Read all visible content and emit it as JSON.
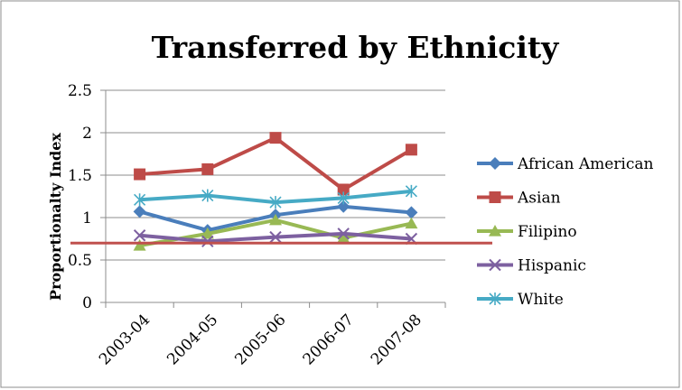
{
  "chart_data": {
    "type": "line",
    "title": "Transferred by Ethnicity",
    "xlabel": "",
    "ylabel": "Proportionalty Index",
    "categories": [
      "2003-04",
      "2004-05",
      "2005-06",
      "2006-07",
      "2007-08"
    ],
    "ylim": [
      0,
      2.5
    ],
    "yticks": [
      "0",
      "0.5",
      "1",
      "1.5",
      "2",
      "2.5"
    ],
    "grid": true,
    "legend_position": "right",
    "series": [
      {
        "name": "African American",
        "color": "#4a7ebb",
        "marker": "diamond",
        "values": [
          1.07,
          0.85,
          1.03,
          1.13,
          1.06
        ]
      },
      {
        "name": "Asian",
        "color": "#be4b48",
        "marker": "square",
        "values": [
          1.51,
          1.57,
          1.94,
          1.33,
          1.8
        ]
      },
      {
        "name": "Filipino",
        "color": "#98b954",
        "marker": "triangle",
        "values": [
          0.67,
          0.81,
          0.97,
          0.76,
          0.93
        ]
      },
      {
        "name": "Hispanic",
        "color": "#7d60a0",
        "marker": "x",
        "values": [
          0.79,
          0.72,
          0.77,
          0.81,
          0.75
        ]
      },
      {
        "name": "White",
        "color": "#46aac5",
        "marker": "star",
        "values": [
          1.21,
          1.26,
          1.18,
          1.23,
          1.31
        ]
      }
    ],
    "reference_line": {
      "value": 0.7,
      "color": "#c0504d"
    }
  }
}
